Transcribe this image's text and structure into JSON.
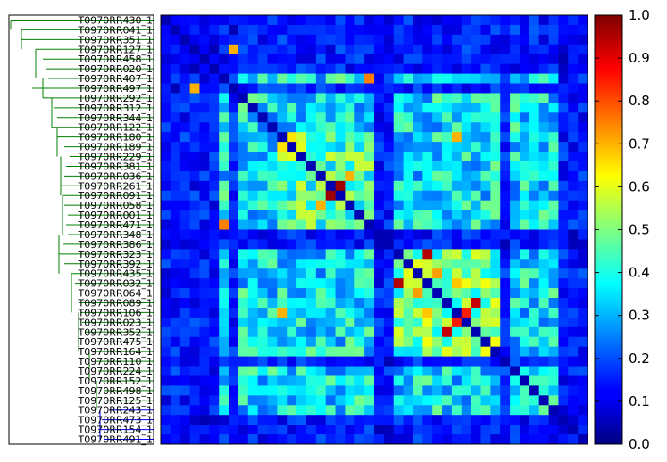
{
  "chart_data": {
    "type": "heatmap",
    "title": "",
    "xlabel": "",
    "ylabel": "",
    "colormap": "jet",
    "vmin": 0.0,
    "vmax": 1.0,
    "colorbar_ticks": [
      "0.0",
      "0.1",
      "0.2",
      "0.3",
      "0.4",
      "0.5",
      "0.6",
      "0.7",
      "0.8",
      "0.9",
      "1.0"
    ],
    "row_labels": [
      "T0970RR430_1",
      "T0970RR041_1",
      "T0970RR351_1",
      "T0970RR127_1",
      "T0970RR458_1",
      "T0970RR020_1",
      "T0970RR407_1",
      "T0970RR497_1",
      "T0970RR292_1",
      "T0970RR312_1",
      "T0970RR344_1",
      "T0970RR122_1",
      "T0970RR180_1",
      "T0970RR189_1",
      "T0970RR229_1",
      "T0970RR381_1",
      "T0970RR036_1",
      "T0970RR261_1",
      "T0970RR091_1",
      "T0970RR058_1",
      "T0970RR001_1",
      "T0970RR471_1",
      "T0970RR348_1",
      "T0970RR386_1",
      "T0970RR323_1",
      "T0970RR392_1",
      "T0970RR435_1",
      "T0970RR032_1",
      "T0970RR064_1",
      "T0970RR089_1",
      "T0970RR106_1",
      "T0970RR023_1",
      "T0970RR352_1",
      "T0970RR475_1",
      "T0970RR164_1",
      "T0970RR110_1",
      "T0970RR224_1",
      "T0970RR152_1",
      "T0970RR498_1",
      "T0970RR125_1",
      "T0970RR243_1",
      "T0970RR473_1",
      "T0970RR154_1",
      "T0970RR491_1"
    ],
    "highlight_pairs": [
      {
        "i": 17,
        "j": 18,
        "value": 0.97
      },
      {
        "i": 24,
        "j": 27,
        "value": 0.95
      },
      {
        "i": 29,
        "j": 32,
        "value": 0.93
      },
      {
        "i": 30,
        "j": 31,
        "value": 0.85
      },
      {
        "i": 6,
        "j": 21,
        "value": 0.75
      },
      {
        "i": 26,
        "j": 28,
        "value": 0.72
      },
      {
        "i": 12,
        "j": 30,
        "value": 0.7
      },
      {
        "i": 16,
        "j": 19,
        "value": 0.7
      },
      {
        "i": 27,
        "j": 30,
        "value": 0.68
      },
      {
        "i": 3,
        "j": 7,
        "value": 0.7
      },
      {
        "i": 12,
        "j": 13,
        "value": 0.65
      },
      {
        "i": 13,
        "j": 14,
        "value": 0.6
      }
    ],
    "low_rows": [
      0,
      1,
      2,
      3,
      4,
      5,
      7,
      22,
      23,
      35,
      41,
      42,
      43
    ]
  },
  "dendrogram": {
    "green": "#008000",
    "blue": "#0000ff"
  }
}
